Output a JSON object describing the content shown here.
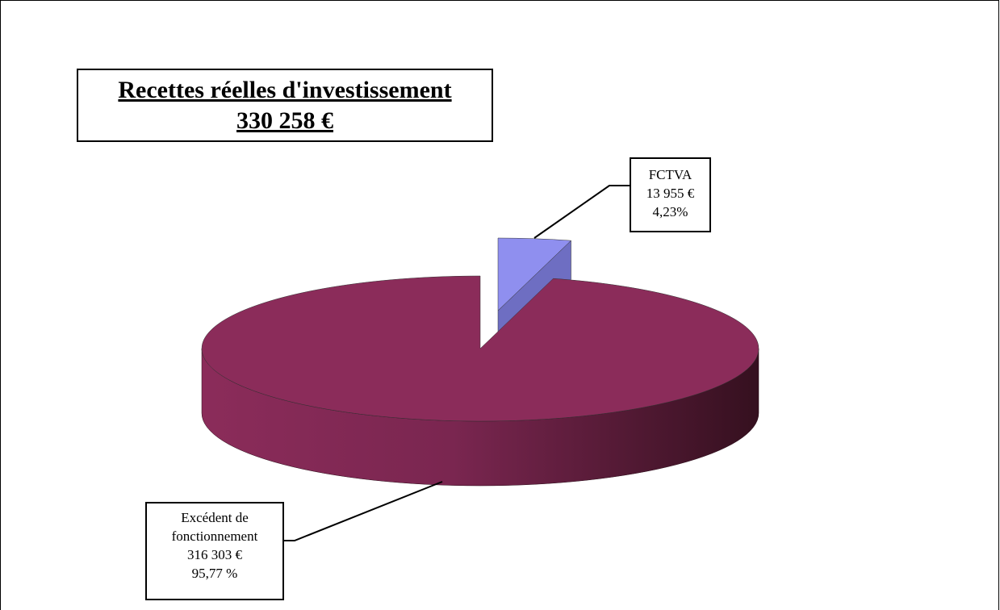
{
  "chart_data": {
    "type": "pie",
    "title": "Recettes réelles d'investissement",
    "subtitle": "330 258 €",
    "categories": [
      "FCTVA",
      "Excédent de fonctionnement"
    ],
    "values": [
      13955,
      316303
    ],
    "value_labels": [
      "13 955 €",
      "316 303 €"
    ],
    "percents": [
      4.23,
      95.77
    ],
    "percent_labels": [
      "4,23%",
      "95,77 %"
    ],
    "colors": [
      "#8f8fef",
      "#8b2c5a"
    ]
  }
}
